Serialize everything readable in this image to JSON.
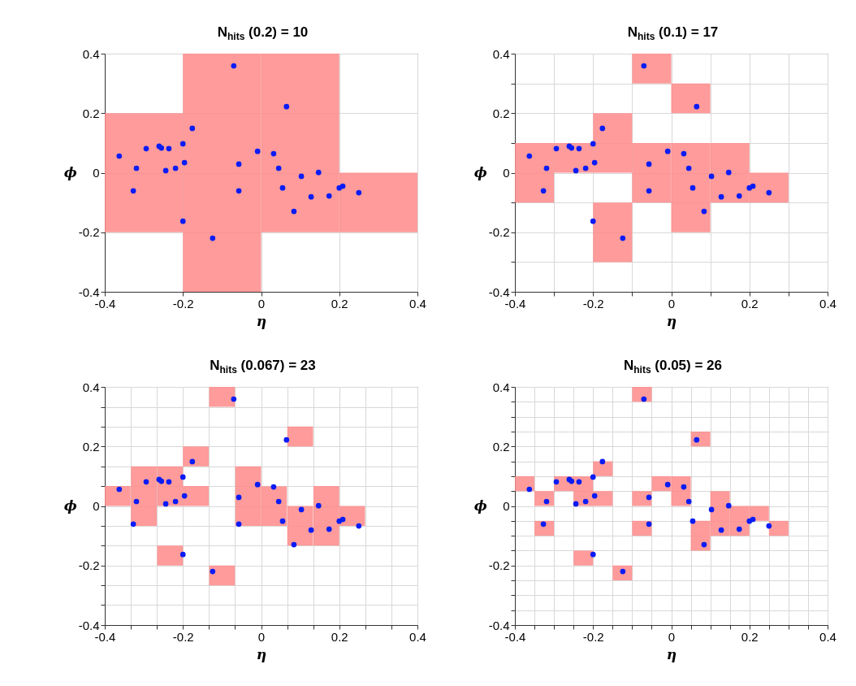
{
  "chart_data": [
    {
      "type": "scatter",
      "title": "N$_{hits}$ (0.2) = 10",
      "xlabel": "η",
      "ylabel": "ϕ",
      "xlim": [
        -0.4,
        0.4
      ],
      "ylim": [
        -0.4,
        0.4
      ],
      "xticks": [
        -0.4,
        -0.2,
        0,
        0.2,
        0.4
      ],
      "yticks": [
        -0.4,
        -0.2,
        0,
        0.2,
        0.4
      ],
      "grid": true,
      "marker": "circle",
      "series": [
        {
          "type": "bar",
          "color": "#ff8a8a",
          "x": [
            -0.3,
            -0.1,
            0.1,
            0.3
          ],
          "base": [
            -0.2,
            -0.4,
            -0.2,
            -0.2
          ],
          "values": [
            0.4,
            0.8,
            0.6,
            0.2
          ]
        },
        {
          "color": "#0a1cf5",
          "x": [
            -0.363,
            -0.327,
            -0.319,
            -0.294,
            -0.261,
            -0.255,
            -0.244,
            -0.236,
            -0.219,
            -0.2,
            -0.196,
            -0.2,
            -0.176,
            -0.124,
            -0.07,
            -0.057,
            -0.057,
            -0.009,
            0.032,
            0.045,
            0.055,
            0.065,
            0.084,
            0.103,
            0.128,
            0.147,
            0.174,
            0.2,
            0.209,
            0.25
          ],
          "values": [
            0.056,
            -0.061,
            0.015,
            0.081,
            0.089,
            0.083,
            0.007,
            0.081,
            0.015,
            0.097,
            0.034,
            -0.163,
            0.149,
            -0.22,
            0.359,
            0.029,
            -0.061,
            0.072,
            0.064,
            0.015,
            -0.051,
            0.222,
            -0.13,
            -0.012,
            -0.081,
            0.001,
            -0.078,
            -0.051,
            -0.045,
            -0.067
          ]
        }
      ]
    },
    {
      "type": "scatter",
      "title": "N$_{hits}$ (0.1) = 17",
      "xlabel": "η",
      "ylabel": "ϕ",
      "xlim": [
        -0.4,
        0.4
      ],
      "ylim": [
        -0.4,
        0.4
      ],
      "xticks": [
        -0.4,
        {
          "value": -0.3,
          "label": null
        },
        -0.2,
        {
          "value": -0.1,
          "label": null
        },
        0,
        {
          "value": 0.1,
          "label": null
        },
        0.2,
        {
          "value": 0.3,
          "label": null
        },
        0.4
      ],
      "yticks": [
        -0.4,
        {
          "value": -0.3,
          "label": null
        },
        -0.2,
        {
          "value": -0.1,
          "label": null
        },
        0,
        {
          "value": 0.1,
          "label": null
        },
        0.2,
        {
          "value": 0.3,
          "label": null
        },
        0.4
      ],
      "grid": true,
      "marker": "circle",
      "series": [
        {
          "type": "bar",
          "color": "#ff8a8a",
          "x": [
            -0.35,
            -0.25,
            -0.15,
            -0.05,
            0.05,
            0.15,
            0.25
          ],
          "base": [
            -0.1,
            0,
            -0.3,
            -0.1,
            -0.2,
            -0.1,
            -0.1
          ],
          "values": [
            0.2,
            0.1,
            0.2,
            0.2,
            0.3,
            0.2,
            0.1
          ]
        },
        {
          "type": "bar",
          "color": "#ff8a8a",
          "x": [
            -0.15,
            -0.05,
            0.05
          ],
          "base": [
            0,
            0.3,
            0.2
          ],
          "values": [
            0.2,
            0.1,
            0.1
          ]
        },
        {
          "color": "#0a1cf5",
          "x": [
            -0.363,
            -0.327,
            -0.319,
            -0.294,
            -0.261,
            -0.255,
            -0.244,
            -0.236,
            -0.219,
            -0.2,
            -0.196,
            -0.2,
            -0.176,
            -0.124,
            -0.07,
            -0.057,
            -0.057,
            -0.009,
            0.032,
            0.045,
            0.055,
            0.065,
            0.084,
            0.103,
            0.128,
            0.147,
            0.174,
            0.2,
            0.209,
            0.25
          ],
          "values": [
            0.056,
            -0.061,
            0.015,
            0.081,
            0.089,
            0.083,
            0.007,
            0.081,
            0.015,
            0.097,
            0.034,
            -0.163,
            0.149,
            -0.22,
            0.359,
            0.029,
            -0.061,
            0.072,
            0.064,
            0.015,
            -0.051,
            0.222,
            -0.13,
            -0.012,
            -0.081,
            0.001,
            -0.078,
            -0.051,
            -0.045,
            -0.067
          ]
        }
      ]
    },
    {
      "type": "scatter",
      "title": "N$_{hits}$ (0.067) = 23",
      "xlabel": "η",
      "ylabel": "ϕ",
      "xlim": [
        -0.4,
        0.4
      ],
      "ylim": [
        -0.4,
        0.4
      ],
      "xticks": [
        -0.4,
        {
          "value": -0.333,
          "label": null
        },
        {
          "value": -0.267,
          "label": null
        },
        -0.2,
        {
          "value": -0.133,
          "label": null
        },
        {
          "value": -0.067,
          "label": null
        },
        0,
        {
          "value": 0.067,
          "label": null
        },
        {
          "value": 0.133,
          "label": null
        },
        0.2,
        {
          "value": 0.267,
          "label": null
        },
        {
          "value": 0.333,
          "label": null
        },
        0.4
      ],
      "yticks": [
        -0.4,
        {
          "value": -0.333,
          "label": null
        },
        {
          "value": -0.267,
          "label": null
        },
        -0.2,
        {
          "value": -0.133,
          "label": null
        },
        {
          "value": -0.067,
          "label": null
        },
        0,
        {
          "value": 0.067,
          "label": null
        },
        {
          "value": 0.133,
          "label": null
        },
        0.2,
        {
          "value": 0.267,
          "label": null
        },
        {
          "value": 0.333,
          "label": null
        },
        0.4
      ],
      "grid": true,
      "marker": "circle",
      "series": [
        {
          "type": "bar",
          "color": "#ff8a8a",
          "x": [
            -0.367,
            -0.3,
            -0.233,
            -0.167,
            -0.1,
            -0.033,
            0.033,
            0.1,
            0.167,
            0.233
          ],
          "base": [
            0,
            -0.067,
            -0.2,
            0,
            -0.267,
            -0.067,
            -0.067,
            -0.133,
            -0.133,
            -0.067
          ],
          "values": [
            0.067,
            0.2,
            0.067,
            0.067,
            0.067,
            0.2,
            0.133,
            0.133,
            0.2,
            0.067
          ]
        },
        {
          "type": "bar",
          "color": "#ff8a8a",
          "x": [
            -0.233,
            -0.167,
            -0.1,
            0.1
          ],
          "base": [
            0,
            0.133,
            0.333,
            0.2
          ],
          "values": [
            0.133,
            0.067,
            0.067,
            0.067
          ]
        },
        {
          "color": "#0a1cf5",
          "x": [
            -0.363,
            -0.327,
            -0.319,
            -0.294,
            -0.261,
            -0.255,
            -0.244,
            -0.236,
            -0.219,
            -0.2,
            -0.196,
            -0.2,
            -0.176,
            -0.124,
            -0.07,
            -0.057,
            -0.057,
            -0.009,
            0.032,
            0.045,
            0.055,
            0.065,
            0.084,
            0.103,
            0.128,
            0.147,
            0.174,
            0.2,
            0.209,
            0.25
          ],
          "values": [
            0.056,
            -0.061,
            0.015,
            0.081,
            0.089,
            0.083,
            0.007,
            0.081,
            0.015,
            0.097,
            0.034,
            -0.163,
            0.149,
            -0.22,
            0.359,
            0.029,
            -0.061,
            0.072,
            0.064,
            0.015,
            -0.051,
            0.222,
            -0.13,
            -0.012,
            -0.081,
            0.001,
            -0.078,
            -0.051,
            -0.045,
            -0.067
          ]
        }
      ]
    },
    {
      "type": "scatter",
      "title": "N$_{hits}$ (0.05) = 26",
      "xlabel": "η",
      "ylabel": "ϕ",
      "xlim": [
        -0.4,
        0.4
      ],
      "ylim": [
        -0.4,
        0.4
      ],
      "xticks": [
        -0.4,
        {
          "value": -0.35,
          "label": null
        },
        {
          "value": -0.3,
          "label": null
        },
        {
          "value": -0.25,
          "label": null
        },
        -0.2,
        {
          "value": -0.15,
          "label": null
        },
        {
          "value": -0.1,
          "label": null
        },
        {
          "value": -0.05,
          "label": null
        },
        0,
        {
          "value": 0.05,
          "label": null
        },
        {
          "value": 0.1,
          "label": null
        },
        {
          "value": 0.15,
          "label": null
        },
        0.2,
        {
          "value": 0.25,
          "label": null
        },
        {
          "value": 0.3,
          "label": null
        },
        {
          "value": 0.35,
          "label": null
        },
        0.4
      ],
      "yticks": [
        -0.4,
        {
          "value": -0.35,
          "label": null
        },
        {
          "value": -0.3,
          "label": null
        },
        {
          "value": -0.25,
          "label": null
        },
        -0.2,
        {
          "value": -0.15,
          "label": null
        },
        {
          "value": -0.1,
          "label": null
        },
        {
          "value": -0.05,
          "label": null
        },
        0,
        {
          "value": 0.05,
          "label": null
        },
        {
          "value": 0.1,
          "label": null
        },
        {
          "value": 0.15,
          "label": null
        },
        0.2,
        {
          "value": 0.25,
          "label": null
        },
        {
          "value": 0.3,
          "label": null
        },
        {
          "value": 0.35,
          "label": null
        },
        0.4
      ],
      "grid": true,
      "marker": "circle",
      "series": [
        {
          "type": "bar",
          "color": "#ff8a8a",
          "x": [
            -0.375,
            -0.325,
            -0.275,
            -0.225,
            -0.175,
            -0.125,
            -0.075,
            -0.025,
            0.025,
            0.075,
            0.125,
            0.175,
            0.225,
            0.275
          ],
          "base": [
            0.05,
            -0.1,
            0.05,
            -0.2,
            0,
            -0.25,
            -0.1,
            0.05,
            0,
            -0.15,
            -0.1,
            -0.1,
            -0.05,
            -0.1
          ],
          "values": [
            0.05,
            0.05,
            0.05,
            0.05,
            0.05,
            0.05,
            0.05,
            0.05,
            0.1,
            0.1,
            0.15,
            0.1,
            0.05,
            0.05
          ]
        },
        {
          "type": "bar",
          "color": "#ff8a8a",
          "x": [
            -0.325,
            -0.225,
            -0.175,
            -0.075,
            0.075
          ],
          "base": [
            0,
            0,
            0.1,
            0,
            0.2
          ],
          "values": [
            0.05,
            0.1,
            0.05,
            0.05,
            0.05
          ]
        },
        {
          "type": "bar",
          "color": "#ff8a8a",
          "x": [
            -0.075
          ],
          "base": [
            0.35
          ],
          "values": [
            0.05
          ]
        },
        {
          "color": "#0a1cf5",
          "x": [
            -0.363,
            -0.327,
            -0.319,
            -0.294,
            -0.261,
            -0.255,
            -0.244,
            -0.236,
            -0.219,
            -0.2,
            -0.196,
            -0.2,
            -0.176,
            -0.124,
            -0.07,
            -0.057,
            -0.057,
            -0.009,
            0.032,
            0.045,
            0.055,
            0.065,
            0.084,
            0.103,
            0.128,
            0.147,
            0.174,
            0.2,
            0.209,
            0.25
          ],
          "values": [
            0.056,
            -0.061,
            0.015,
            0.081,
            0.089,
            0.083,
            0.007,
            0.081,
            0.015,
            0.097,
            0.034,
            -0.163,
            0.149,
            -0.22,
            0.359,
            0.029,
            -0.061,
            0.072,
            0.064,
            0.015,
            -0.051,
            0.222,
            -0.13,
            -0.012,
            -0.081,
            0.001,
            -0.078,
            -0.051,
            -0.045,
            -0.067
          ]
        }
      ]
    }
  ]
}
